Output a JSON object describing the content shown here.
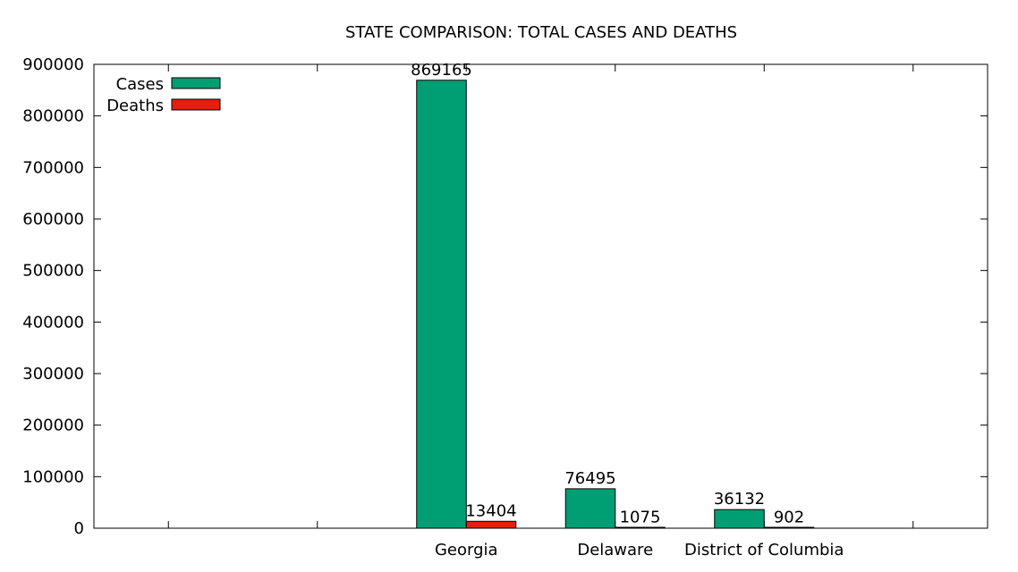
{
  "chart_data": {
    "type": "bar",
    "title": "STATE COMPARISON: TOTAL CASES AND DEATHS",
    "xlabel": "",
    "ylabel": "",
    "categories": [
      "",
      "",
      "Georgia",
      "Delaware",
      "District of Columbia",
      ""
    ],
    "series": [
      {
        "name": "Cases",
        "color": "#009e73",
        "values": [
          null,
          null,
          869165,
          76495,
          36132,
          null
        ]
      },
      {
        "name": "Deaths",
        "color": "#e51e10",
        "values": [
          null,
          null,
          13404,
          1075,
          902,
          null
        ]
      }
    ],
    "ylim": [
      0,
      900000
    ],
    "yticks": [
      0,
      100000,
      200000,
      300000,
      400000,
      500000,
      600000,
      700000,
      800000,
      900000
    ],
    "grid": false,
    "legend_position": "top-left"
  }
}
